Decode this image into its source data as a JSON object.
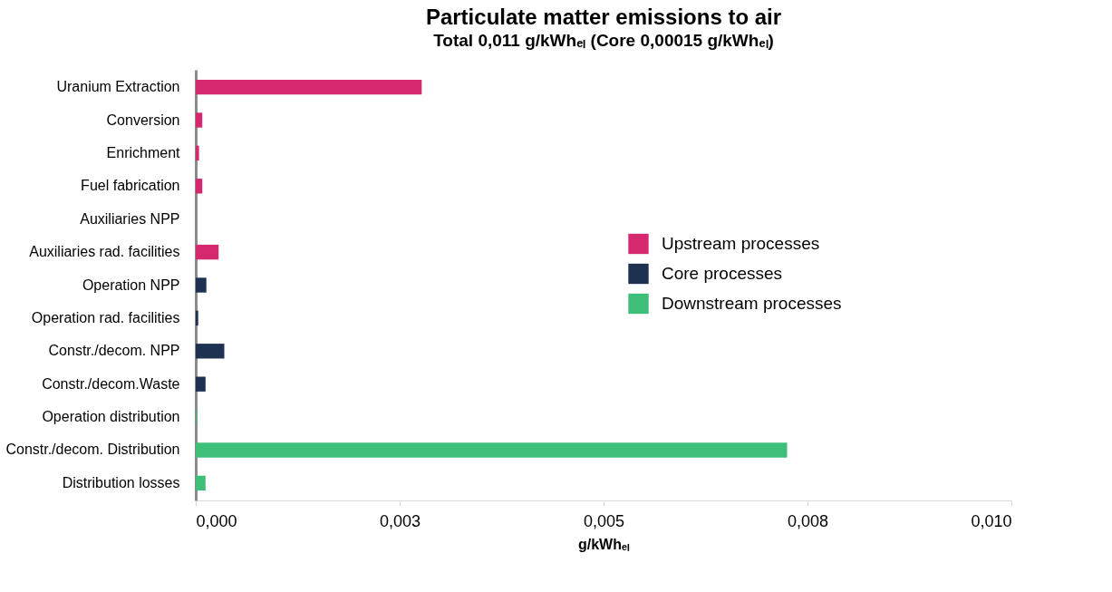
{
  "chart_data": {
    "type": "bar",
    "orientation": "horizontal",
    "title": "Particulate matter emissions to air",
    "subtitle": "Total 0,011 g/kWhₑₗ  (Core 0,00015 g/kWhₑₗ)",
    "xlabel": "g/kWhₑₗ",
    "categories": [
      "Uranium Extraction",
      "Conversion",
      "Enrichment",
      "Fuel fabrication",
      "Auxiliaries NPP",
      "Auxiliaries rad. facilities",
      "Operation NPP",
      "Operation rad. facilities",
      "Constr./decom. NPP",
      "Constr./decom.Waste",
      "Operation distribution",
      "Constr./decom. Distribution",
      "Distribution losses"
    ],
    "series": [
      {
        "name": "Upstream processes",
        "color": "#d6286f",
        "values": [
          0.00277,
          8e-05,
          4e-05,
          8e-05,
          null,
          0.00028,
          null,
          null,
          null,
          null,
          null,
          null,
          null
        ]
      },
      {
        "name": "Core processes",
        "color": "#1e3150",
        "values": [
          null,
          null,
          null,
          null,
          null,
          null,
          0.00013,
          3e-05,
          0.00035,
          0.00012,
          null,
          null,
          null
        ]
      },
      {
        "name": "Downstream processes",
        "color": "#3dbf7a",
        "values": [
          null,
          null,
          null,
          null,
          null,
          null,
          null,
          null,
          null,
          null,
          1e-05,
          0.00725,
          0.00012
        ]
      }
    ],
    "xlim": [
      0,
      0.01
    ],
    "xticks": [
      {
        "value": 0,
        "label": "0,000"
      },
      {
        "value": 0.0025,
        "label": "0,003"
      },
      {
        "value": 0.005,
        "label": "0,005"
      },
      {
        "value": 0.0075,
        "label": "0,008"
      },
      {
        "value": 0.01,
        "label": "0,010"
      }
    ],
    "legend": "right",
    "grid": false
  }
}
